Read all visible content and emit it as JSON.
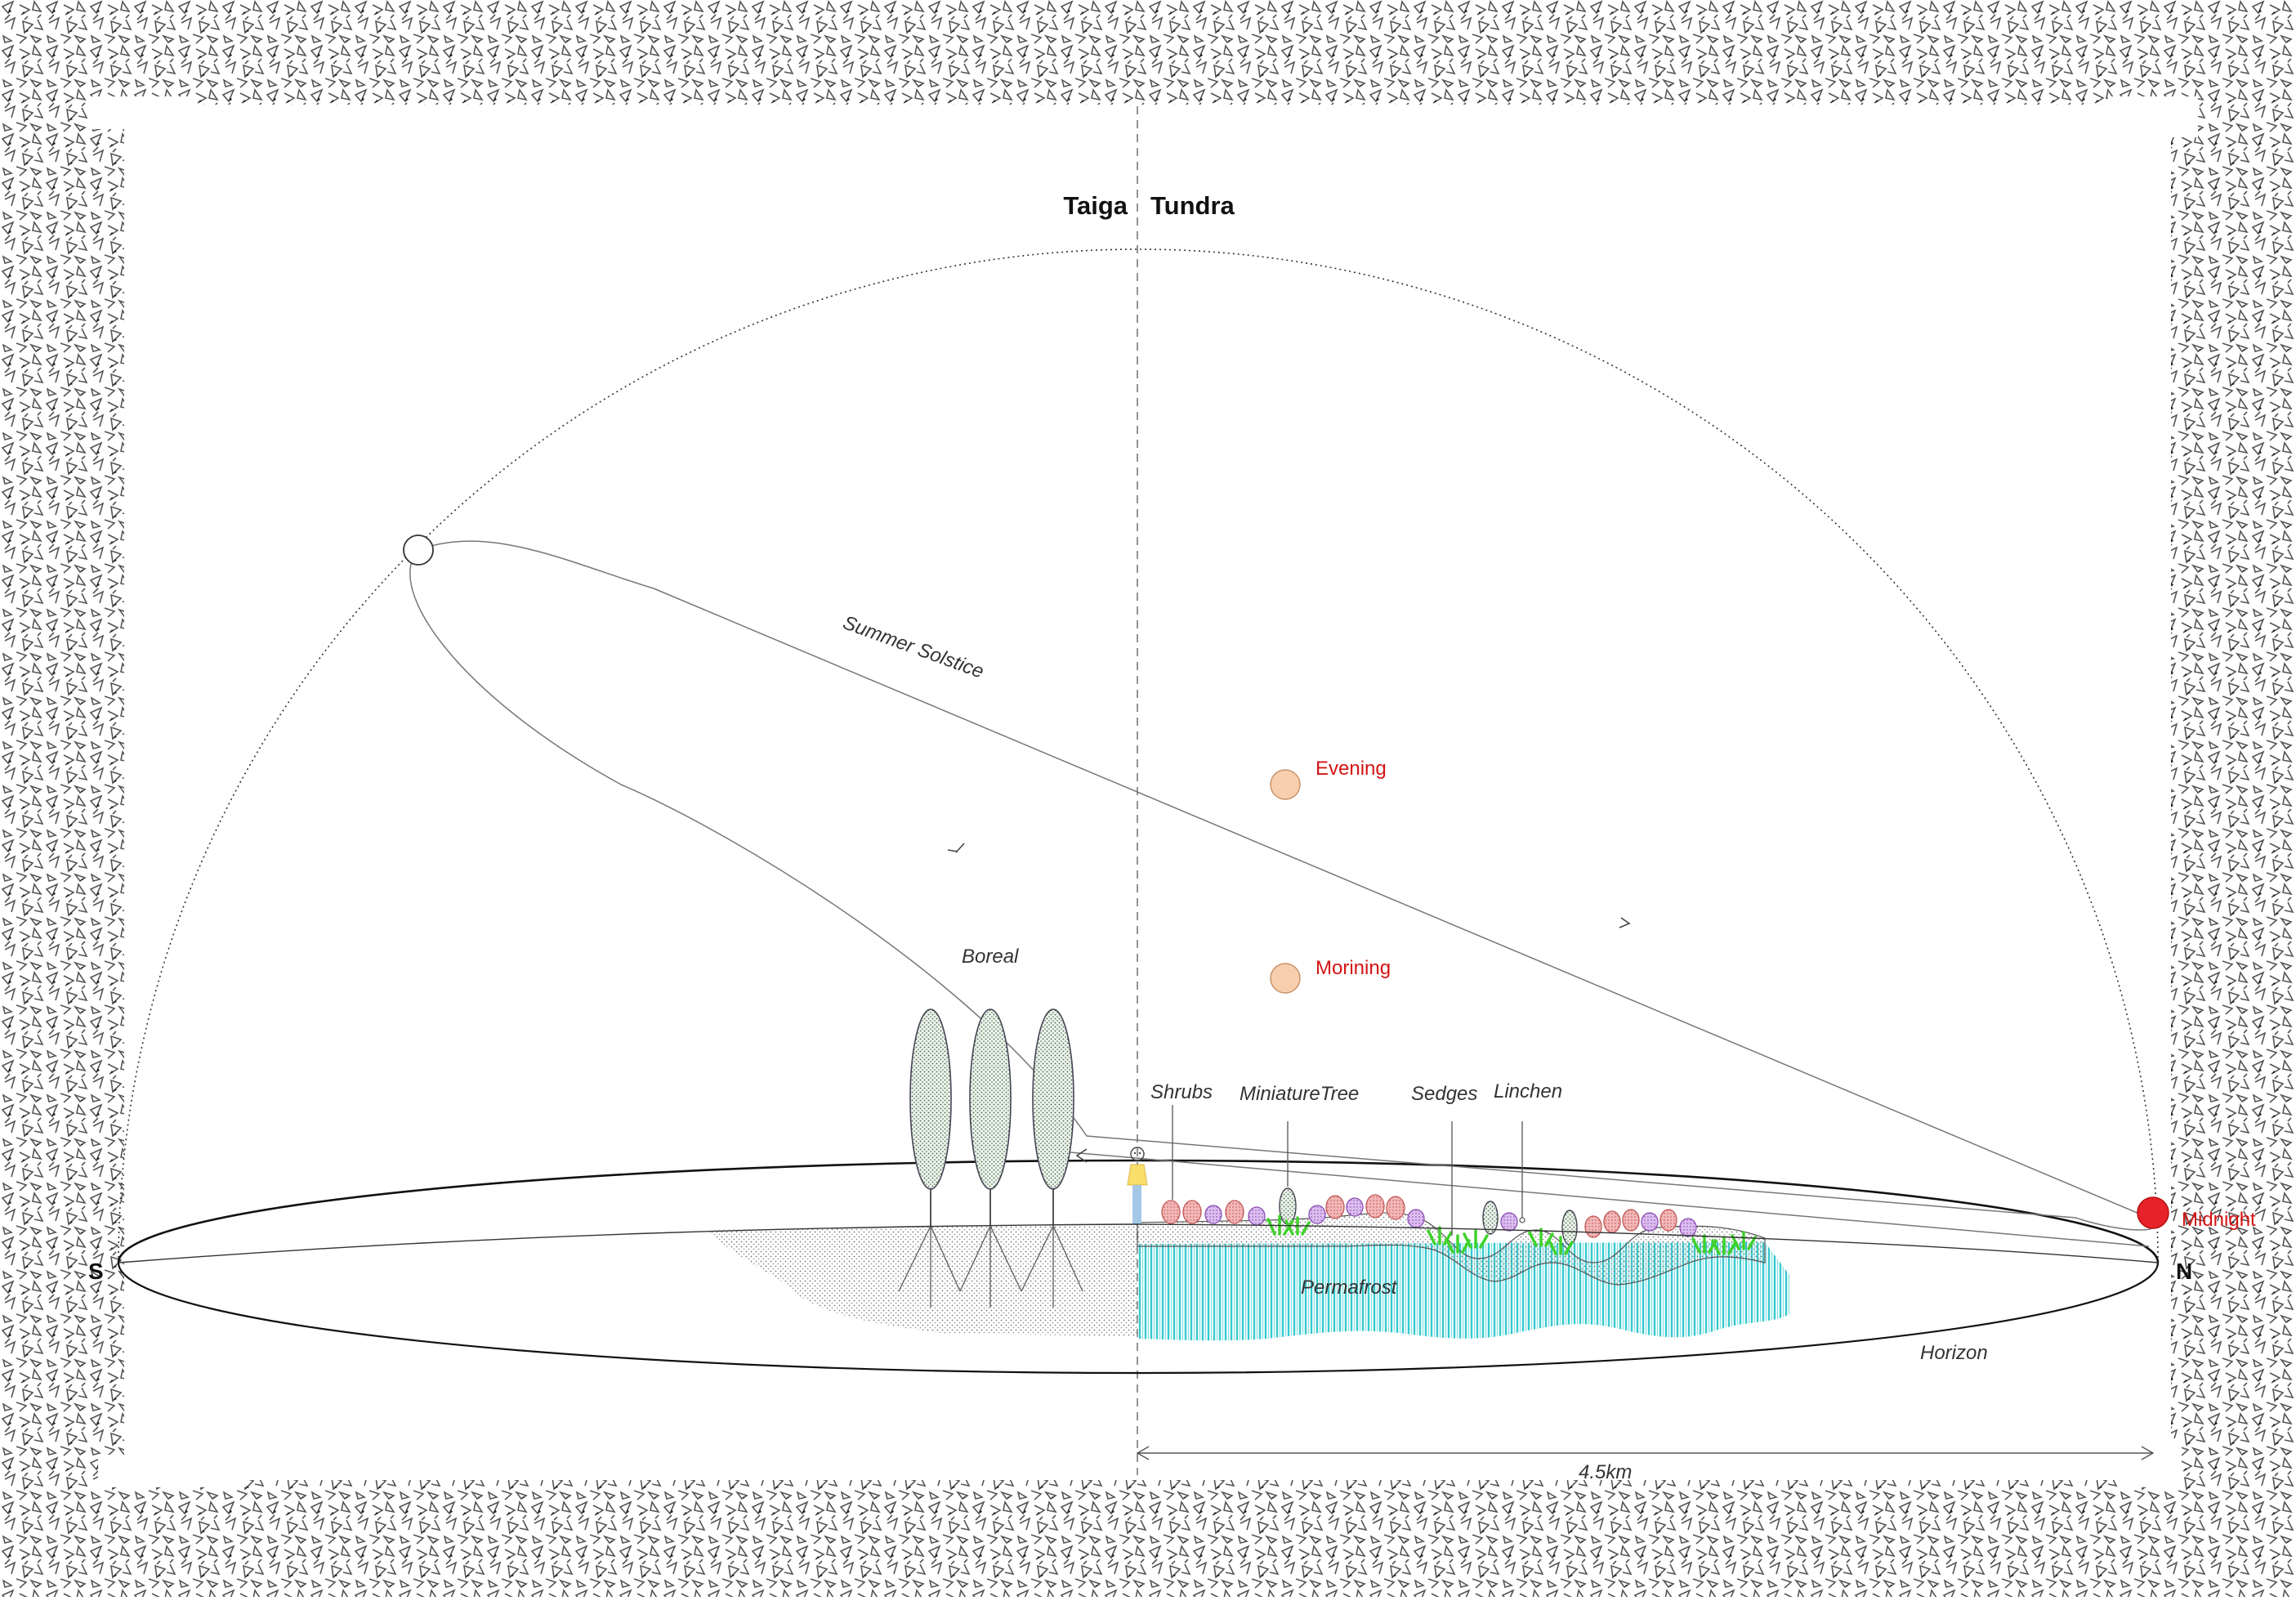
{
  "header": {
    "left": "Taiga",
    "right": "Tundra"
  },
  "labels": {
    "summer_solstice": "Summer Solstice",
    "evening": "Evening",
    "morning": "Morining",
    "midnight": "Midnight",
    "boreal": "Boreal",
    "shrubs": "Shrubs",
    "miniature_tree": "MiniatureTree",
    "sedges": "Sedges",
    "lichen": "Linchen",
    "permafrost": "Permafrost",
    "horizon": "Horizon",
    "south": "S",
    "north": "N",
    "distance": "4.5km"
  },
  "colors": {
    "sun_daytime": "#f8cfae",
    "sun_midnight": "#e8222a",
    "label_red": "#d41414",
    "permafrost": "#35c9cf",
    "shrub_red": "#e68c8c",
    "shrub_purple": "#c08ce0",
    "sedge_green": "#3fd22a",
    "tree_green": "#7a9a7a",
    "person_yellow": "#f9de6b",
    "person_blue": "#a5c8e8"
  },
  "icons": [
    "sun-icon",
    "person-icon",
    "tree-icon",
    "shrub-icon",
    "sedge-icon",
    "arrow-icon"
  ]
}
